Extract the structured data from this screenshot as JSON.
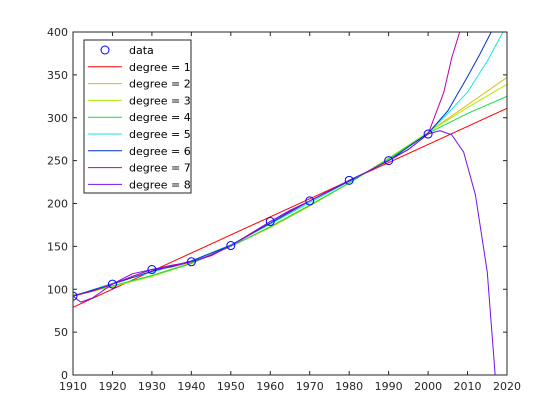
{
  "chart_data": {
    "type": "line",
    "title": "",
    "xlabel": "",
    "ylabel": "",
    "xlim": [
      1910,
      2020
    ],
    "ylim": [
      0,
      400
    ],
    "x_ticks": [
      "1910",
      "1920",
      "1930",
      "1940",
      "1950",
      "1960",
      "1970",
      "1980",
      "1990",
      "2000",
      "2010",
      "2020"
    ],
    "y_ticks": [
      "0",
      "50",
      "100",
      "150",
      "200",
      "250",
      "300",
      "350",
      "400"
    ],
    "grid": false,
    "legend_position": "top-left",
    "data": {
      "name": "data",
      "color": "#0000ff",
      "x": [
        1910,
        1920,
        1930,
        1940,
        1950,
        1960,
        1970,
        1980,
        1990,
        2000
      ],
      "y": [
        92,
        106,
        123,
        132,
        151,
        179,
        203,
        227,
        250,
        281
      ]
    },
    "series": [
      {
        "name": "degree = 1",
        "color": "#ff0000",
        "x": [
          1910,
          2020
        ],
        "y": [
          79,
          311
        ]
      },
      {
        "name": "degree = 2",
        "color": "#e6b800",
        "x": [
          1910,
          1920,
          1930,
          1940,
          1950,
          1960,
          1970,
          1980,
          1990,
          2000,
          2010,
          2020
        ],
        "y": [
          92,
          103,
          116,
          131,
          150,
          172,
          197,
          224,
          252,
          283,
          315,
          347
        ]
      },
      {
        "name": "degree = 3",
        "color": "#aaee00",
        "x": [
          1910,
          1920,
          1930,
          1940,
          1950,
          1960,
          1970,
          1980,
          1990,
          2000,
          2010,
          2020
        ],
        "y": [
          93,
          103,
          115,
          130,
          150,
          173,
          198,
          224,
          253,
          283,
          312,
          339
        ]
      },
      {
        "name": "degree = 4",
        "color": "#11dd44",
        "x": [
          1910,
          1920,
          1930,
          1940,
          1950,
          1960,
          1970,
          1980,
          1990,
          2000,
          2010,
          2020
        ],
        "y": [
          93,
          104,
          116,
          130,
          150,
          173,
          198,
          224,
          252,
          282,
          305,
          325
        ]
      },
      {
        "name": "degree = 5",
        "color": "#11e6e6",
        "x": [
          1910,
          1920,
          1930,
          1940,
          1950,
          1960,
          1970,
          1980,
          1990,
          2000,
          2005,
          2010,
          2015,
          2019
        ],
        "y": [
          92,
          107,
          120,
          133,
          152,
          176,
          201,
          226,
          250,
          282,
          305,
          330,
          366,
          400
        ]
      },
      {
        "name": "degree = 6",
        "color": "#0033cc",
        "x": [
          1910,
          1920,
          1930,
          1940,
          1950,
          1960,
          1970,
          1980,
          1990,
          2000,
          2005,
          2010,
          2013,
          2016
        ],
        "y": [
          92,
          106,
          121,
          133,
          151,
          177,
          203,
          226,
          250,
          282,
          308,
          348,
          373,
          400
        ]
      },
      {
        "name": "degree = 7",
        "color": "#bb00aa",
        "x": [
          1910,
          1915,
          1920,
          1925,
          1930,
          1935,
          1940,
          1945,
          1950,
          1955,
          1960,
          1965,
          1970,
          1975,
          1980,
          1985,
          1990,
          1995,
          2000,
          2004,
          2006,
          2008
        ],
        "y": [
          92,
          98,
          106,
          115,
          123,
          128,
          132,
          139,
          151,
          165,
          179,
          191,
          203,
          215,
          227,
          238,
          250,
          263,
          281,
          330,
          370,
          400
        ]
      },
      {
        "name": "degree = 8",
        "color": "#7711ee",
        "x": [
          1910,
          1912,
          1915,
          1920,
          1925,
          1930,
          1935,
          1940,
          1945,
          1950,
          1955,
          1960,
          1965,
          1970,
          1975,
          1980,
          1985,
          1990,
          1995,
          2000,
          2003,
          2006,
          2009,
          2012,
          2015,
          2017
        ],
        "y": [
          92,
          85,
          90,
          106,
          118,
          123,
          126,
          132,
          140,
          151,
          164,
          179,
          192,
          203,
          215,
          227,
          238,
          250,
          263,
          281,
          285,
          280,
          260,
          210,
          120,
          0
        ]
      }
    ]
  }
}
